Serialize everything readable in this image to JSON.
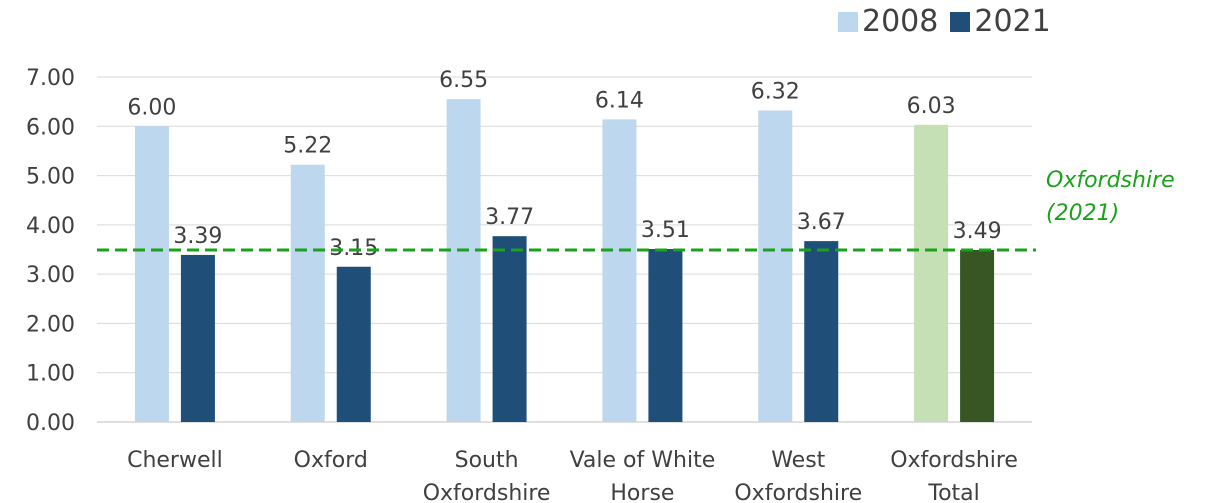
{
  "chart_data": {
    "type": "bar",
    "title": "",
    "categories": [
      [
        "Cherwell"
      ],
      [
        "Oxford"
      ],
      [
        "South",
        "Oxfordshire"
      ],
      [
        "Vale of White",
        "Horse"
      ],
      [
        "West",
        "Oxfordshire"
      ],
      [
        "Oxfordshire",
        "Total"
      ]
    ],
    "series": [
      {
        "name": "2008",
        "values": [
          6.0,
          5.22,
          6.55,
          6.14,
          6.32,
          6.03
        ],
        "labels": [
          "6.00",
          "5.22",
          "6.55",
          "6.14",
          "6.32",
          "6.03"
        ],
        "color": "#bdd7ee",
        "highlight_color": "#c5e0b4"
      },
      {
        "name": "2021",
        "values": [
          3.39,
          3.15,
          3.77,
          3.51,
          3.67,
          3.49
        ],
        "labels": [
          "3.39",
          "3.15",
          "3.77",
          "3.51",
          "3.67",
          "3.49"
        ],
        "color": "#1f4e79",
        "highlight_color": "#375623"
      }
    ],
    "highlight_category_index": 5,
    "y_ticks": [
      "0.00",
      "1.00",
      "2.00",
      "3.00",
      "4.00",
      "5.00",
      "6.00",
      "7.00"
    ],
    "ylim": [
      0,
      7
    ],
    "grid": true,
    "legend_position": "top-right",
    "reference_line": {
      "value": 3.49,
      "label_lines": [
        "Oxfordshire",
        "(2021)"
      ],
      "color": "#1aa31a",
      "style": "dashed"
    }
  }
}
